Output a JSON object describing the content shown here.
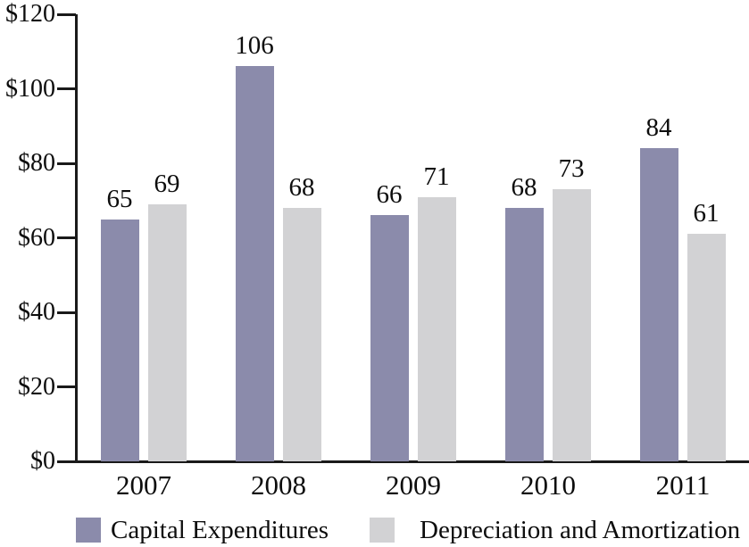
{
  "chart_data": {
    "type": "bar",
    "categories": [
      "2007",
      "2008",
      "2009",
      "2010",
      "2011"
    ],
    "series": [
      {
        "name": "Capital Expenditures",
        "color": "#8B8BAB",
        "values": [
          65,
          106,
          66,
          68,
          84
        ]
      },
      {
        "name": "Depreciation and Amortization",
        "color": "#D2D2D4",
        "values": [
          69,
          68,
          71,
          73,
          61
        ]
      }
    ],
    "title": "",
    "xlabel": "",
    "ylabel": "",
    "ylim": [
      0,
      120
    ],
    "ytick_step": 20,
    "ytick_labels": [
      "$0",
      "$20",
      "$40",
      "$60",
      "$80",
      "$100",
      "$120"
    ],
    "grid": false,
    "legend_position": "bottom",
    "value_labels": true,
    "axis_color": "#1a1a1a",
    "text_color": "#0d0d0d"
  }
}
